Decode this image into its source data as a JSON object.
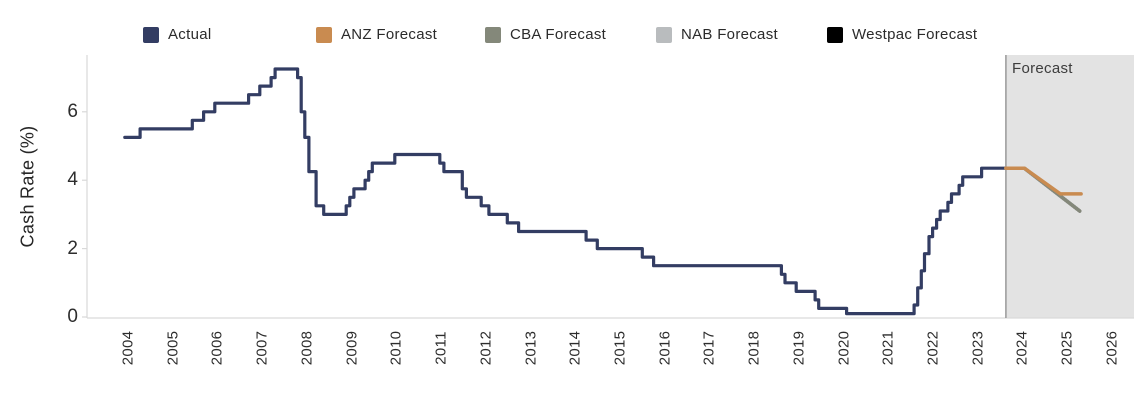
{
  "legend": {
    "items": [
      {
        "label": "Actual",
        "color": "#333d63"
      },
      {
        "label": "ANZ Forecast",
        "color": "#c98b50"
      },
      {
        "label": "CBA Forecast",
        "color": "#84887a"
      },
      {
        "label": "NAB Forecast",
        "color": "#b9bcbe"
      },
      {
        "label": "Westpac Forecast",
        "color": "#000000"
      }
    ]
  },
  "chart_data": {
    "type": "line",
    "title": "",
    "xlabel": "",
    "ylabel": "Cash Rate (%)",
    "yticks": [
      0,
      2,
      4,
      6
    ],
    "ylim": [
      0,
      7.66
    ],
    "xticks": [
      2004,
      2005,
      2006,
      2007,
      2008,
      2009,
      2010,
      2011,
      2012,
      2013,
      2014,
      2015,
      2016,
      2017,
      2018,
      2019,
      2020,
      2021,
      2022,
      2023,
      2024,
      2025,
      2026
    ],
    "grid": false,
    "legend_position": "top",
    "axis_line_color": "#d9d9d9",
    "forecast_band": {
      "label": "Forecast",
      "start_x_year": 2024.41,
      "fill": "#e3e3e3",
      "divider_color": "#999999"
    },
    "series": [
      {
        "name": "Actual",
        "color": "#333d63",
        "step": true,
        "width": 3.2,
        "points": [
          [
            2004.83,
            5.25
          ],
          [
            2005.17,
            5.5
          ],
          [
            2006.33,
            5.75
          ],
          [
            2006.58,
            6.0
          ],
          [
            2006.83,
            6.25
          ],
          [
            2007.58,
            6.5
          ],
          [
            2007.83,
            6.75
          ],
          [
            2008.08,
            7.0
          ],
          [
            2008.17,
            7.25
          ],
          [
            2008.67,
            7.0
          ],
          [
            2008.75,
            6.0
          ],
          [
            2008.83,
            5.25
          ],
          [
            2008.92,
            4.25
          ],
          [
            2009.08,
            3.25
          ],
          [
            2009.25,
            3.0
          ],
          [
            2009.75,
            3.25
          ],
          [
            2009.83,
            3.5
          ],
          [
            2009.92,
            3.75
          ],
          [
            2010.17,
            4.0
          ],
          [
            2010.25,
            4.25
          ],
          [
            2010.33,
            4.5
          ],
          [
            2010.83,
            4.75
          ],
          [
            2011.83,
            4.5
          ],
          [
            2011.92,
            4.25
          ],
          [
            2012.33,
            3.75
          ],
          [
            2012.42,
            3.5
          ],
          [
            2012.75,
            3.25
          ],
          [
            2012.92,
            3.0
          ],
          [
            2013.33,
            2.75
          ],
          [
            2013.58,
            2.5
          ],
          [
            2015.08,
            2.25
          ],
          [
            2015.33,
            2.0
          ],
          [
            2016.33,
            1.75
          ],
          [
            2016.58,
            1.5
          ],
          [
            2019.42,
            1.25
          ],
          [
            2019.5,
            1.0
          ],
          [
            2019.75,
            0.75
          ],
          [
            2020.17,
            0.5
          ],
          [
            2020.25,
            0.25
          ],
          [
            2020.87,
            0.1
          ],
          [
            2022.37,
            0.35
          ],
          [
            2022.45,
            0.85
          ],
          [
            2022.53,
            1.35
          ],
          [
            2022.6,
            1.85
          ],
          [
            2022.7,
            2.35
          ],
          [
            2022.78,
            2.6
          ],
          [
            2022.87,
            2.85
          ],
          [
            2022.95,
            3.1
          ],
          [
            2023.12,
            3.35
          ],
          [
            2023.2,
            3.6
          ],
          [
            2023.37,
            3.85
          ],
          [
            2023.45,
            4.1
          ],
          [
            2023.87,
            4.35
          ],
          [
            2024.41,
            4.35
          ]
        ]
      },
      {
        "name": "Westpac Forecast",
        "color": "#000000",
        "step": false,
        "width": 3.5,
        "note": "coincides with CBA Forecast line (drawn beneath, not separately visible)",
        "points": [
          [
            2024.41,
            4.35
          ],
          [
            2024.82,
            4.35
          ],
          [
            2026.05,
            3.1
          ]
        ]
      },
      {
        "name": "NAB Forecast",
        "color": "#b9bcbe",
        "step": false,
        "width": 3.5,
        "note": "coincides with CBA Forecast line (drawn beneath, not separately visible)",
        "points": [
          [
            2024.41,
            4.35
          ],
          [
            2024.82,
            4.35
          ],
          [
            2026.05,
            3.1
          ]
        ]
      },
      {
        "name": "CBA Forecast",
        "color": "#84887a",
        "step": false,
        "width": 3.5,
        "points": [
          [
            2024.41,
            4.35
          ],
          [
            2024.82,
            4.35
          ],
          [
            2026.05,
            3.1
          ]
        ]
      },
      {
        "name": "ANZ Forecast",
        "color": "#c98b50",
        "step": false,
        "width": 3.5,
        "points": [
          [
            2024.41,
            4.35
          ],
          [
            2024.82,
            4.35
          ],
          [
            2025.62,
            3.6
          ],
          [
            2026.08,
            3.6
          ]
        ]
      }
    ]
  }
}
